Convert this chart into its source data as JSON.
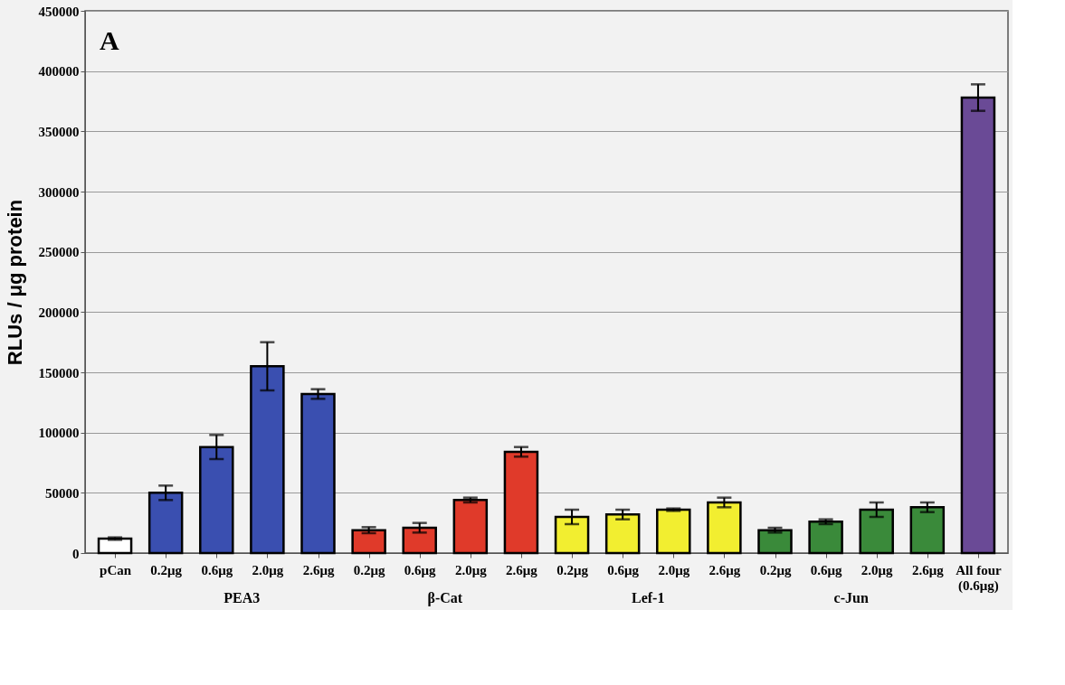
{
  "chart_data": {
    "type": "bar",
    "ylabel": "RLUs / μg protein",
    "categories": [
      "pCan",
      "0.2μg",
      "0.6μg",
      "2.0μg",
      "2.6μg",
      "0.2μg",
      "0.6μg",
      "2.0μg",
      "2.6μg",
      "0.2μg",
      "0.6μg",
      "2.0μg",
      "2.6μg",
      "0.2μg",
      "0.6μg",
      "2.0μg",
      "2.6μg",
      "All four (0.6μg)"
    ],
    "values": [
      12000,
      50000,
      88000,
      155000,
      132000,
      19000,
      21000,
      44000,
      84000,
      30000,
      32000,
      36000,
      42000,
      19000,
      26000,
      36000,
      38000,
      378000
    ],
    "errors": [
      1000,
      6000,
      10000,
      20000,
      4000,
      2500,
      4000,
      2000,
      4000,
      6000,
      4000,
      1000,
      4000,
      2000,
      2000,
      6000,
      4000,
      11000
    ],
    "colors": [
      "#ffffff",
      "#3a4fb0",
      "#3a4fb0",
      "#3a4fb0",
      "#3a4fb0",
      "#e03a2a",
      "#e03a2a",
      "#e03a2a",
      "#e03a2a",
      "#f2ee30",
      "#f2ee30",
      "#f2ee30",
      "#f2ee30",
      "#3a8a3a",
      "#3a8a3a",
      "#3a8a3a",
      "#3a8a3a",
      "#6a4a96"
    ],
    "ylim": [
      0,
      450000
    ],
    "yticks": [
      0,
      50000,
      100000,
      150000,
      200000,
      250000,
      300000,
      350000,
      400000,
      450000
    ],
    "grid": "y",
    "annotations": [
      "A",
      "PEA3",
      "β-Cat",
      "Lef-1",
      "c-Jun"
    ]
  }
}
